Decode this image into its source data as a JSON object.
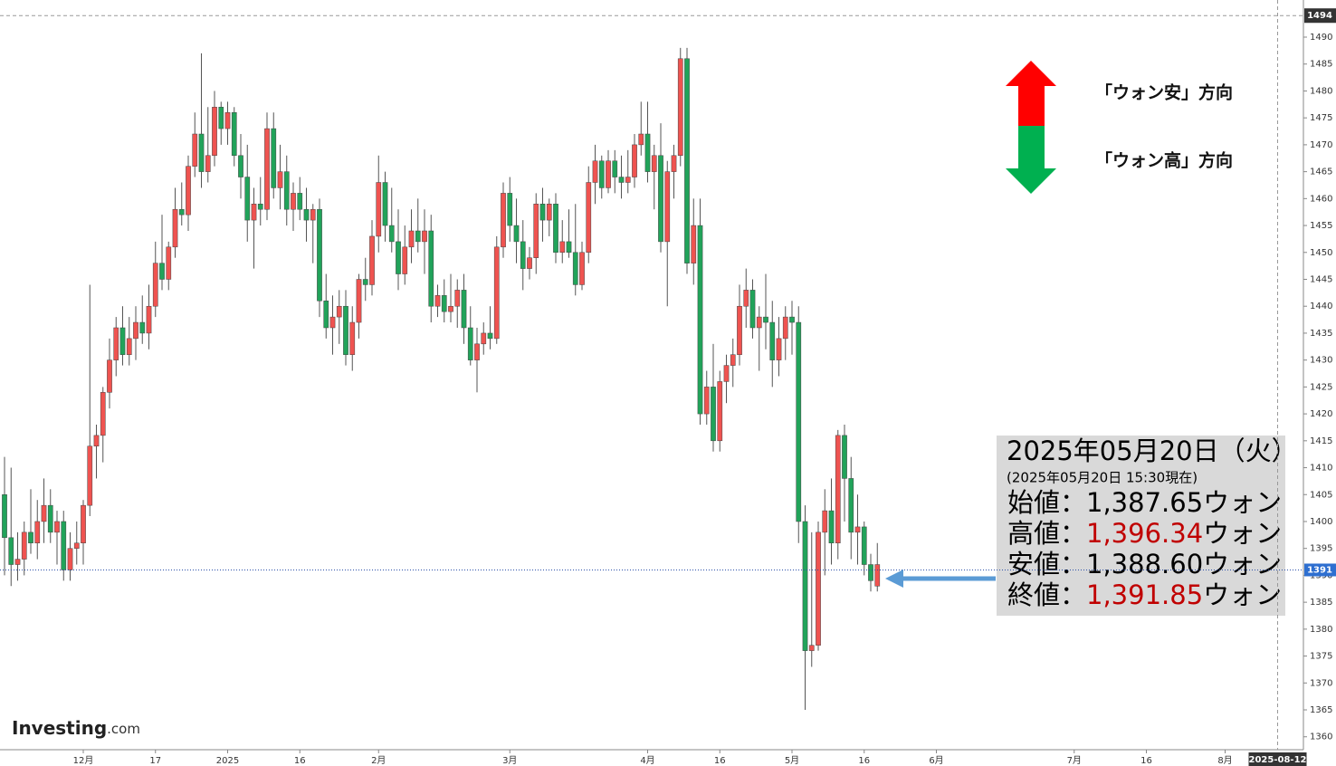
{
  "chart_data": {
    "type": "candlestick",
    "xlim": [
      -0.69,
      197.93
    ],
    "ylim": [
      1357.6,
      1496.9
    ],
    "yticks": [
      1360,
      1365,
      1370,
      1375,
      1380,
      1385,
      1390,
      1395,
      1400,
      1405,
      1410,
      1415,
      1420,
      1425,
      1430,
      1435,
      1440,
      1445,
      1450,
      1455,
      1460,
      1465,
      1470,
      1475,
      1480,
      1485,
      1490
    ],
    "xticks": [
      {
        "value": 12,
        "label": "12月"
      },
      {
        "value": 23,
        "label": "17"
      },
      {
        "value": 34,
        "label": "2025"
      },
      {
        "value": 45,
        "label": "16"
      },
      {
        "value": 57,
        "label": "2月"
      },
      {
        "value": 77,
        "label": "3月"
      },
      {
        "value": 98,
        "label": "4月"
      },
      {
        "value": 109,
        "label": "16"
      },
      {
        "value": 120,
        "label": "5月"
      },
      {
        "value": 131,
        "label": "16"
      },
      {
        "value": 142,
        "label": "6月"
      },
      {
        "value": 163,
        "label": "7月"
      },
      {
        "value": 174,
        "label": "16"
      },
      {
        "value": 186,
        "label": "8月"
      }
    ],
    "up_color": "#ef5350",
    "down_color": "#21a35a",
    "wick_color": "#555555",
    "grid": false,
    "open": [
      1405,
      1397,
      1392,
      1393,
      1398,
      1396,
      1400,
      1403,
      1398,
      1400,
      1391,
      1395,
      1396,
      1403,
      1414,
      1416,
      1424,
      1430,
      1436,
      1431,
      1434,
      1437,
      1435,
      1440,
      1448,
      1445,
      1451,
      1458,
      1457,
      1466,
      1472,
      1465,
      1468,
      1477,
      1473,
      1476,
      1468,
      1464,
      1456,
      1459,
      1458,
      1473,
      1462,
      1465,
      1458,
      1461,
      1458,
      1456,
      1458,
      1441,
      1436,
      1438,
      1440,
      1431,
      1437,
      1445,
      1444,
      1453,
      1463,
      1455,
      1452,
      1446,
      1451,
      1454,
      1452,
      1454,
      1440,
      1442,
      1439,
      1440,
      1443,
      1436,
      1430,
      1433,
      1435,
      1434,
      1451,
      1461,
      1455,
      1452,
      1447,
      1449,
      1459,
      1456,
      1459,
      1450,
      1452,
      1450,
      1444,
      1450,
      1463,
      1467,
      1462,
      1467,
      1464,
      1463,
      1464,
      1470,
      1472,
      1465,
      1468,
      1452,
      1465,
      1468,
      1486,
      1448,
      1455,
      1420,
      1425,
      1415,
      1426,
      1429,
      1431,
      1440,
      1443,
      1436,
      1438,
      1437,
      1430,
      1434,
      1438,
      1437,
      1400,
      1376,
      1377,
      1398,
      1402,
      1396,
      1416,
      1408,
      1398,
      1399,
      1392,
      1388
    ],
    "high": [
      1412,
      1410,
      1398,
      1400,
      1406,
      1404,
      1408,
      1406,
      1402,
      1402,
      1398,
      1400,
      1404,
      1444,
      1418,
      1425,
      1434,
      1438,
      1440,
      1438,
      1440,
      1442,
      1444,
      1452,
      1457,
      1452,
      1462,
      1463,
      1468,
      1476,
      1487,
      1477,
      1480,
      1478,
      1478,
      1477,
      1472,
      1470,
      1462,
      1464,
      1476,
      1476,
      1470,
      1468,
      1463,
      1464,
      1462,
      1459,
      1460,
      1446,
      1442,
      1443,
      1443,
      1440,
      1446,
      1449,
      1456,
      1468,
      1465,
      1462,
      1458,
      1455,
      1458,
      1460,
      1458,
      1457,
      1444,
      1445,
      1446,
      1445,
      1446,
      1440,
      1436,
      1437,
      1440,
      1453,
      1463,
      1464,
      1460,
      1456,
      1451,
      1461,
      1462,
      1460,
      1461,
      1456,
      1458,
      1459,
      1452,
      1466,
      1470,
      1468,
      1469,
      1469,
      1468,
      1469,
      1472,
      1478,
      1478,
      1470,
      1474,
      1467,
      1470,
      1488,
      1488,
      1460,
      1460,
      1428,
      1433,
      1428,
      1431,
      1434,
      1444,
      1447,
      1445,
      1440,
      1446,
      1441,
      1438,
      1440,
      1441,
      1440,
      1403,
      1398,
      1400,
      1406,
      1408,
      1417,
      1418,
      1412,
      1405,
      1400,
      1394,
      1396
    ],
    "low": [
      1390,
      1388,
      1389,
      1390,
      1394,
      1393,
      1396,
      1396,
      1392,
      1389,
      1389,
      1392,
      1392,
      1401,
      1408,
      1411,
      1421,
      1427,
      1429,
      1429,
      1430,
      1433,
      1432,
      1438,
      1443,
      1443,
      1449,
      1455,
      1454,
      1464,
      1462,
      1463,
      1466,
      1470,
      1470,
      1466,
      1460,
      1452,
      1447,
      1455,
      1456,
      1460,
      1458,
      1455,
      1454,
      1456,
      1452,
      1448,
      1438,
      1434,
      1431,
      1433,
      1429,
      1428,
      1434,
      1441,
      1442,
      1450,
      1452,
      1450,
      1443,
      1444,
      1448,
      1450,
      1446,
      1437,
      1438,
      1437,
      1437,
      1436,
      1433,
      1429,
      1424,
      1431,
      1432,
      1433,
      1449,
      1452,
      1448,
      1443,
      1445,
      1446,
      1452,
      1453,
      1448,
      1448,
      1449,
      1442,
      1443,
      1448,
      1459,
      1460,
      1461,
      1461,
      1460,
      1461,
      1462,
      1468,
      1463,
      1458,
      1450,
      1440,
      1460,
      1466,
      1446,
      1444,
      1418,
      1418,
      1413,
      1413,
      1422,
      1425,
      1429,
      1436,
      1434,
      1428,
      1432,
      1425,
      1427,
      1430,
      1431,
      1396,
      1365,
      1373,
      1376,
      1390,
      1392,
      1393,
      1400,
      1393,
      1392,
      1390,
      1387,
      1387
    ],
    "close": [
      1397,
      1392,
      1393,
      1398,
      1396,
      1400,
      1403,
      1398,
      1400,
      1391,
      1395,
      1396,
      1403,
      1414,
      1416,
      1424,
      1430,
      1436,
      1431,
      1434,
      1437,
      1435,
      1440,
      1448,
      1445,
      1451,
      1458,
      1457,
      1466,
      1472,
      1465,
      1468,
      1477,
      1473,
      1476,
      1468,
      1464,
      1456,
      1459,
      1458,
      1473,
      1462,
      1465,
      1458,
      1461,
      1458,
      1456,
      1458,
      1441,
      1436,
      1438,
      1440,
      1431,
      1437,
      1445,
      1444,
      1453,
      1463,
      1455,
      1452,
      1446,
      1451,
      1454,
      1452,
      1454,
      1440,
      1442,
      1439,
      1440,
      1443,
      1436,
      1430,
      1433,
      1435,
      1434,
      1451,
      1461,
      1455,
      1452,
      1447,
      1449,
      1459,
      1456,
      1459,
      1450,
      1452,
      1450,
      1444,
      1450,
      1463,
      1467,
      1462,
      1467,
      1464,
      1463,
      1464,
      1470,
      1472,
      1465,
      1468,
      1452,
      1465,
      1468,
      1486,
      1448,
      1455,
      1420,
      1425,
      1415,
      1426,
      1429,
      1431,
      1440,
      1443,
      1436,
      1438,
      1437,
      1430,
      1434,
      1438,
      1437,
      1400,
      1376,
      1377,
      1398,
      1402,
      1396,
      1416,
      1408,
      1398,
      1399,
      1392,
      1389,
      1392
    ],
    "high_marker": 1494,
    "last_price": 1391,
    "date_marker": {
      "value": 194,
      "label": "2025-08-12"
    },
    "direction_labels": [
      "「ウォン安」方向",
      "「ウォン高」方向"
    ],
    "info": {
      "title": "2025年05月20日（火）",
      "subtitle": "(2025年05月20日 15:30現在)",
      "rows": [
        {
          "label": "始値：",
          "value": "1,387.65",
          "unit": "ウォン",
          "highlight": false
        },
        {
          "label": "高値：",
          "value": "1,396.34",
          "unit": "ウォン",
          "highlight": true
        },
        {
          "label": "安値：",
          "value": "1,388.60",
          "unit": "ウォン",
          "highlight": false
        },
        {
          "label": "終値：",
          "value": "1,391.85",
          "unit": "ウォン",
          "highlight": true
        }
      ]
    },
    "logo": {
      "name": "Investing",
      "suffix": ".com"
    }
  }
}
